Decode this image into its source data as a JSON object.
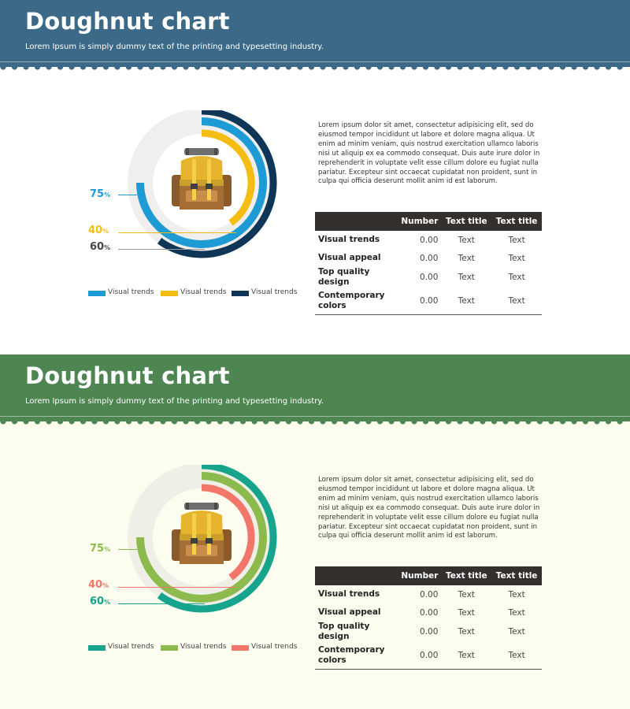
{
  "slides": [
    {
      "header_title": "Doughnut chart",
      "header_subtitle": "Lorem Ipsum is simply dummy text of the printing and typesetting industry.",
      "colors": {
        "header": "#3b6987",
        "body": "#ffffff",
        "ring1": "#1e9ad5",
        "ring2": "#f3bd12",
        "ring3": "#0f3557",
        "track": "#f0efee",
        "pct1": "#1e9ad5",
        "pct2": "#f3bd12",
        "pct3": "#444444",
        "lead1": "#1e9ad5",
        "lead2": "#f3bd12",
        "lead3": "#999999"
      },
      "paragraph": "Lorem ipsum dolor sit amet, consectetur adipisicing elit, sed do eiusmod tempor incididunt ut labore et dolore magna aliqua. Ut enim ad minim veniam, quis nostrud exercitation ullamco laboris nisi ut aliquip ex ea commodo consequat. Duis aute irure dolor in reprehenderit in voluptate velit esse cillum dolore eu fugiat nulla pariatur. Excepteur sint occaecat cupidatat non proident, sunt in culpa qui officia deserunt mollit anim id est laborum.",
      "table": {
        "headers": [
          "",
          "Number",
          "Text title",
          "Text title"
        ],
        "rows": [
          [
            "Visual trends",
            "0.00",
            "Text",
            "Text"
          ],
          [
            "Visual appeal",
            "0.00",
            "Text",
            "Text"
          ],
          [
            "Top quality design",
            "0.00",
            "Text",
            "Text"
          ],
          [
            "Contemporary colors",
            "0.00",
            "Text",
            "Text"
          ]
        ]
      },
      "chart_data": {
        "type": "pie",
        "variant": "doughnut",
        "series": [
          {
            "name": "Visual trends",
            "value": 75,
            "label": "75",
            "unit": "%"
          },
          {
            "name": "Visual trends",
            "value": 40,
            "label": "40",
            "unit": "%"
          },
          {
            "name": "Visual trends",
            "value": 60,
            "label": "60",
            "unit": "%"
          }
        ],
        "legend_position": "bottom"
      }
    },
    {
      "header_title": "Doughnut chart",
      "header_subtitle": "Lorem Ipsum is simply dummy text of the printing and typesetting industry.",
      "colors": {
        "header": "#4e8651",
        "body": "#fcfdee",
        "ring1": "#8dba4c",
        "ring2": "#f2776a",
        "ring3": "#16a48c",
        "track": "#efefe7",
        "pct1": "#8dba4c",
        "pct2": "#f2776a",
        "pct3": "#16a48c",
        "lead1": "#8dba4c",
        "lead2": "#f2776a",
        "lead3": "#16a48c"
      },
      "paragraph": "Lorem ipsum dolor sit amet, consectetur adipisicing elit, sed do eiusmod tempor incididunt ut labore et dolore magna aliqua. Ut enim ad minim veniam, quis nostrud exercitation ullamco laboris nisi ut aliquip ex ea commodo consequat. Duis aute irure dolor in reprehenderit in voluptate velit esse cillum dolore eu fugiat nulla pariatur. Excepteur sint occaecat cupidatat non proident, sunt in culpa qui officia deserunt mollit anim id est laborum.",
      "table": {
        "headers": [
          "",
          "Number",
          "Text title",
          "Text title"
        ],
        "rows": [
          [
            "Visual trends",
            "0.00",
            "Text",
            "Text"
          ],
          [
            "Visual appeal",
            "0.00",
            "Text",
            "Text"
          ],
          [
            "Top quality design",
            "0.00",
            "Text",
            "Text"
          ],
          [
            "Contemporary colors",
            "0.00",
            "Text",
            "Text"
          ]
        ]
      },
      "legend_colors": [
        "#16a48c",
        "#8dba4c",
        "#f2776a"
      ],
      "chart_data": {
        "type": "pie",
        "variant": "doughnut",
        "series": [
          {
            "name": "Visual trends",
            "value": 75,
            "label": "75",
            "unit": "%"
          },
          {
            "name": "Visual trends",
            "value": 40,
            "label": "40",
            "unit": "%"
          },
          {
            "name": "Visual trends",
            "value": 60,
            "label": "60",
            "unit": "%"
          }
        ],
        "legend_position": "bottom"
      }
    }
  ]
}
